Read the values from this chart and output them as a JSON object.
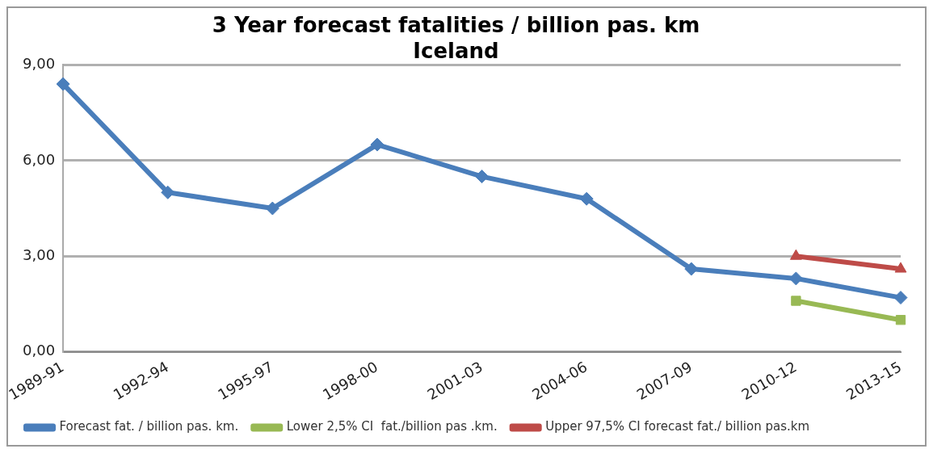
{
  "chart_data": {
    "type": "line",
    "title": [
      "3 Year forecast fatalities / billion pas. km",
      "Iceland"
    ],
    "categories": [
      "1989-91",
      "1992-94",
      "1995-97",
      "1998-00",
      "2001-03",
      "2004-06",
      "2007-09",
      "2010-12",
      "2013-15"
    ],
    "series": [
      {
        "name": "Forecast fat. / billion pas. km.",
        "color": "#4a7ebb",
        "marker": "diamond",
        "values": [
          8.4,
          5.0,
          4.5,
          6.5,
          5.5,
          4.8,
          2.6,
          2.3,
          1.7
        ]
      },
      {
        "name": "Lower 2,5% CI  fat./billion pas .km.",
        "color": "#98b954",
        "marker": "square",
        "values": [
          null,
          null,
          null,
          null,
          null,
          null,
          null,
          1.6,
          1.0
        ]
      },
      {
        "name": "Upper 97,5% CI forecast fat./ billion pas.km",
        "color": "#be4b48",
        "marker": "triangle",
        "values": [
          null,
          null,
          null,
          null,
          null,
          null,
          null,
          3.0,
          2.6
        ]
      }
    ],
    "ylim": [
      0,
      9
    ],
    "yticks": [
      {
        "value": 0,
        "label": "0,00"
      },
      {
        "value": 3,
        "label": "3,00"
      },
      {
        "value": 6,
        "label": "6,00"
      },
      {
        "value": 9,
        "label": "9,00"
      }
    ],
    "grid": "y",
    "legend": "bottom",
    "line_style": "solid"
  }
}
